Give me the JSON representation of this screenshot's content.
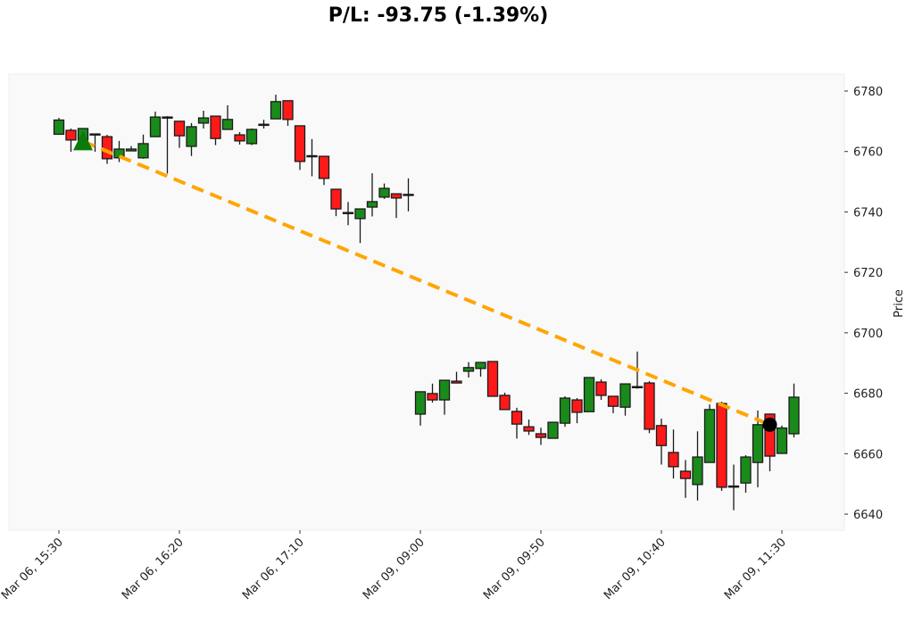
{
  "title": "P/L: -93.75 (-1.39%)",
  "colors": {
    "up": "#1a8a1a",
    "down": "#ff1a1a",
    "edge": "#1a1a1a",
    "trade_line": "#ffa500",
    "entry_marker": "#0a7a0a",
    "exit_marker": "#000000",
    "plot_bg": "#f9f9f9"
  },
  "chart_data": {
    "type": "candlestick",
    "title": "P/L: -93.75 (-1.39%)",
    "xlabel": "",
    "ylabel": "Price",
    "ylim": [
      6634,
      6785
    ],
    "yticks": [
      6640,
      6660,
      6680,
      6700,
      6720,
      6740,
      6760,
      6780
    ],
    "xtick_labels": [
      "Mar 06, 15:30",
      "Mar 06, 16:20",
      "Mar 06, 17:10",
      "Mar 09, 09:00",
      "Mar 09, 09:50",
      "Mar 09, 10:40",
      "Mar 09, 11:30"
    ],
    "xtick_index": [
      0,
      10,
      20,
      30,
      40,
      50,
      60
    ],
    "grid": false,
    "interval": "5min",
    "candles": [
      {
        "t": "Mar 06, 15:30",
        "o": 6765.7,
        "h": 6771.1,
        "l": 6765.7,
        "c": 6770.4
      },
      {
        "t": "Mar 06, 15:35",
        "o": 6767.0,
        "h": 6767.6,
        "l": 6759.9,
        "c": 6763.8
      },
      {
        "t": "Mar 06, 15:40",
        "o": 6763.8,
        "h": 6767.6,
        "l": 6763.0,
        "c": 6767.6
      },
      {
        "t": "Mar 06, 15:45",
        "o": 6765.8,
        "h": 6765.8,
        "l": 6759.9,
        "c": 6765.8
      },
      {
        "t": "Mar 06, 15:50",
        "o": 6764.9,
        "h": 6765.5,
        "l": 6755.9,
        "c": 6757.6
      },
      {
        "t": "Mar 06, 15:55",
        "o": 6757.9,
        "h": 6763.5,
        "l": 6756.5,
        "c": 6760.8
      },
      {
        "t": "Mar 06, 16:00",
        "o": 6760.2,
        "h": 6761.8,
        "l": 6760.2,
        "c": 6760.8
      },
      {
        "t": "Mar 06, 16:05",
        "o": 6757.9,
        "h": 6765.6,
        "l": 6757.6,
        "c": 6762.6
      },
      {
        "t": "Mar 06, 16:10",
        "o": 6764.9,
        "h": 6773.2,
        "l": 6764.9,
        "c": 6771.4
      },
      {
        "t": "Mar 06, 16:15",
        "o": 6771.4,
        "h": 6771.7,
        "l": 6752.7,
        "c": 6771.1
      },
      {
        "t": "Mar 06, 16:20",
        "o": 6770.0,
        "h": 6770.0,
        "l": 6761.2,
        "c": 6765.2
      },
      {
        "t": "Mar 06, 16:25",
        "o": 6761.7,
        "h": 6769.4,
        "l": 6758.5,
        "c": 6768.2
      },
      {
        "t": "Mar 06, 16:30",
        "o": 6769.4,
        "h": 6773.5,
        "l": 6767.6,
        "c": 6771.1
      },
      {
        "t": "Mar 06, 16:35",
        "o": 6771.7,
        "h": 6771.7,
        "l": 6762.1,
        "c": 6764.3
      },
      {
        "t": "Mar 06, 16:40",
        "o": 6767.3,
        "h": 6775.3,
        "l": 6767.3,
        "c": 6770.6
      },
      {
        "t": "Mar 06, 16:45",
        "o": 6765.5,
        "h": 6766.4,
        "l": 6762.3,
        "c": 6763.5
      },
      {
        "t": "Mar 06, 16:50",
        "o": 6762.6,
        "h": 6767.6,
        "l": 6762.1,
        "c": 6767.3
      },
      {
        "t": "Mar 06, 16:55",
        "o": 6768.8,
        "h": 6770.5,
        "l": 6767.6,
        "c": 6769.0
      },
      {
        "t": "Mar 06, 17:00",
        "o": 6770.8,
        "h": 6778.8,
        "l": 6770.8,
        "c": 6776.5
      },
      {
        "t": "Mar 06, 17:05",
        "o": 6776.8,
        "h": 6776.8,
        "l": 6768.5,
        "c": 6770.6
      },
      {
        "t": "Mar 06, 17:10",
        "o": 6768.5,
        "h": 6768.5,
        "l": 6753.9,
        "c": 6756.7
      },
      {
        "t": "Mar 06, 17:15",
        "o": 6758.4,
        "h": 6764.1,
        "l": 6751.8,
        "c": 6758.6
      },
      {
        "t": "Mar 06, 17:20",
        "o": 6758.4,
        "h": 6758.4,
        "l": 6748.9,
        "c": 6751.1
      },
      {
        "t": "Mar 06, 17:25",
        "o": 6747.5,
        "h": 6747.5,
        "l": 6738.6,
        "c": 6741.0
      },
      {
        "t": "Mar 06, 17:30",
        "o": 6739.8,
        "h": 6743.3,
        "l": 6735.6,
        "c": 6739.6
      },
      {
        "t": "Mar 06, 17:35",
        "o": 6737.8,
        "h": 6741.0,
        "l": 6729.7,
        "c": 6741.0
      },
      {
        "t": "Mar 06, 17:40",
        "o": 6741.6,
        "h": 6752.8,
        "l": 6738.5,
        "c": 6743.4
      },
      {
        "t": "Mar 06, 17:45",
        "o": 6744.9,
        "h": 6749.4,
        "l": 6744.3,
        "c": 6747.8
      },
      {
        "t": "Mar 06, 17:50",
        "o": 6746.0,
        "h": 6746.0,
        "l": 6738.0,
        "c": 6744.6
      },
      {
        "t": "Mar 06, 17:55",
        "o": 6745.8,
        "h": 6751.1,
        "l": 6740.2,
        "c": 6745.6
      },
      {
        "t": "Mar 09, 09:00",
        "o": 6673.1,
        "h": 6680.5,
        "l": 6669.3,
        "c": 6680.5
      },
      {
        "t": "Mar 09, 09:05",
        "o": 6679.9,
        "h": 6683.2,
        "l": 6676.9,
        "c": 6677.8
      },
      {
        "t": "Mar 09, 09:10",
        "o": 6677.8,
        "h": 6684.3,
        "l": 6672.9,
        "c": 6684.3
      },
      {
        "t": "Mar 09, 09:15",
        "o": 6684.0,
        "h": 6687.1,
        "l": 6683.4,
        "c": 6683.4
      },
      {
        "t": "Mar 09, 09:20",
        "o": 6687.3,
        "h": 6690.3,
        "l": 6685.2,
        "c": 6688.5
      },
      {
        "t": "Mar 09, 09:25",
        "o": 6688.2,
        "h": 6690.2,
        "l": 6685.5,
        "c": 6690.2
      },
      {
        "t": "Mar 09, 09:30",
        "o": 6690.5,
        "h": 6690.5,
        "l": 6679.0,
        "c": 6679.0
      },
      {
        "t": "Mar 09, 09:35",
        "o": 6679.3,
        "h": 6680.2,
        "l": 6674.6,
        "c": 6674.6
      },
      {
        "t": "Mar 09, 09:40",
        "o": 6674.0,
        "h": 6675.2,
        "l": 6665.0,
        "c": 6669.8
      },
      {
        "t": "Mar 09, 09:45",
        "o": 6668.9,
        "h": 6671.3,
        "l": 6666.2,
        "c": 6667.5
      },
      {
        "t": "Mar 09, 09:50",
        "o": 6666.6,
        "h": 6668.6,
        "l": 6662.9,
        "c": 6665.4
      },
      {
        "t": "Mar 09, 09:55",
        "o": 6665.1,
        "h": 6670.4,
        "l": 6665.1,
        "c": 6670.4
      },
      {
        "t": "Mar 09, 10:00",
        "o": 6670.1,
        "h": 6679.0,
        "l": 6668.9,
        "c": 6678.4
      },
      {
        "t": "Mar 09, 10:05",
        "o": 6677.8,
        "h": 6678.4,
        "l": 6670.1,
        "c": 6673.7
      },
      {
        "t": "Mar 09, 10:10",
        "o": 6673.9,
        "h": 6685.2,
        "l": 6673.9,
        "c": 6685.2
      },
      {
        "t": "Mar 09, 10:15",
        "o": 6683.7,
        "h": 6684.6,
        "l": 6677.8,
        "c": 6679.3
      },
      {
        "t": "Mar 09, 10:20",
        "o": 6679.0,
        "h": 6679.0,
        "l": 6673.4,
        "c": 6675.7
      },
      {
        "t": "Mar 09, 10:25",
        "o": 6675.4,
        "h": 6683.1,
        "l": 6672.6,
        "c": 6683.1
      },
      {
        "t": "Mar 09, 10:30",
        "o": 6682.0,
        "h": 6693.8,
        "l": 6681.5,
        "c": 6682.2
      },
      {
        "t": "Mar 09, 10:35",
        "o": 6683.4,
        "h": 6684.0,
        "l": 6666.8,
        "c": 6668.1
      },
      {
        "t": "Mar 09, 10:40",
        "o": 6669.3,
        "h": 6671.6,
        "l": 6656.4,
        "c": 6662.7
      },
      {
        "t": "Mar 09, 10:45",
        "o": 6660.4,
        "h": 6668.0,
        "l": 6651.8,
        "c": 6655.7
      },
      {
        "t": "Mar 09, 10:50",
        "o": 6654.2,
        "h": 6657.9,
        "l": 6645.4,
        "c": 6651.8
      },
      {
        "t": "Mar 09, 10:55",
        "o": 6649.8,
        "h": 6667.4,
        "l": 6644.5,
        "c": 6658.9
      },
      {
        "t": "Mar 09, 11:00",
        "o": 6657.1,
        "h": 6676.3,
        "l": 6657.1,
        "c": 6674.6
      },
      {
        "t": "Mar 09, 11:05",
        "o": 6676.6,
        "h": 6677.2,
        "l": 6647.7,
        "c": 6648.9
      },
      {
        "t": "Mar 09, 11:10",
        "o": 6649.1,
        "h": 6656.4,
        "l": 6641.3,
        "c": 6649.3
      },
      {
        "t": "Mar 09, 11:15",
        "o": 6650.3,
        "h": 6659.5,
        "l": 6647.1,
        "c": 6658.9
      },
      {
        "t": "Mar 09, 11:20",
        "o": 6657.1,
        "h": 6674.3,
        "l": 6648.9,
        "c": 6669.6
      },
      {
        "t": "Mar 09, 11:25",
        "o": 6673.1,
        "h": 6673.1,
        "l": 6654.2,
        "c": 6659.2
      },
      {
        "t": "Mar 09, 11:30",
        "o": 6660.1,
        "h": 6669.3,
        "l": 6660.1,
        "c": 6668.5
      },
      {
        "t": "Mar 09, 11:35",
        "o": 6666.6,
        "h": 6683.2,
        "l": 6665.4,
        "c": 6678.7
      }
    ],
    "trade": {
      "entry": {
        "index": 2,
        "price": 6763.35,
        "marker": "triangle-up"
      },
      "exit": {
        "index": 59,
        "price": 6669.6,
        "marker": "circle"
      },
      "pnl": -93.75,
      "pnl_pct": -1.39
    }
  }
}
